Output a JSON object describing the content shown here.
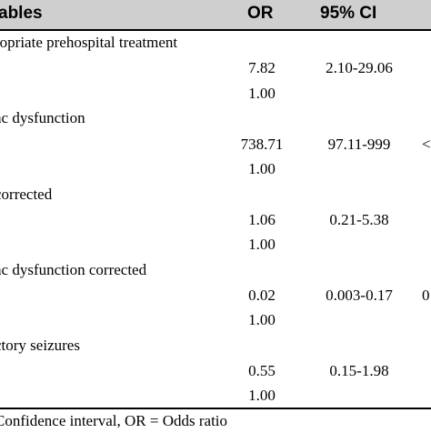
{
  "header": {
    "variable": "ables",
    "or": "OR",
    "ci": "95% CI",
    "cut_glyph": ""
  },
  "sections": [
    {
      "title": "ropriate prehospital treatment",
      "rows": [
        {
          "or": "7.82",
          "ci": "2.10-29.06",
          "cut": ""
        },
        {
          "or": "1.00",
          "ci": "",
          "cut": ""
        }
      ]
    },
    {
      "title": "ac dysfunction",
      "rows": [
        {
          "or": "738.71",
          "ci": "97.11-999",
          "cut": "<"
        },
        {
          "or": "1.00",
          "ci": "",
          "cut": ""
        }
      ]
    },
    {
      "title": "corrected",
      "rows": [
        {
          "or": "1.06",
          "ci": "0.21-5.38",
          "cut": ""
        },
        {
          "or": "1.00",
          "ci": "",
          "cut": ""
        }
      ]
    },
    {
      "title": "ac dysfunction corrected",
      "rows": [
        {
          "or": "0.02",
          "ci": "0.003-0.17",
          "cut": "0"
        },
        {
          "or": "1.00",
          "ci": "",
          "cut": ""
        }
      ]
    },
    {
      "title": "ctory seizures",
      "rows": [
        {
          "or": "0.55",
          "ci": "0.15-1.98",
          "cut": ""
        },
        {
          "or": "1.00",
          "ci": "",
          "cut": ""
        }
      ]
    }
  ],
  "footnote": "Confidence interval, OR = Odds ratio"
}
